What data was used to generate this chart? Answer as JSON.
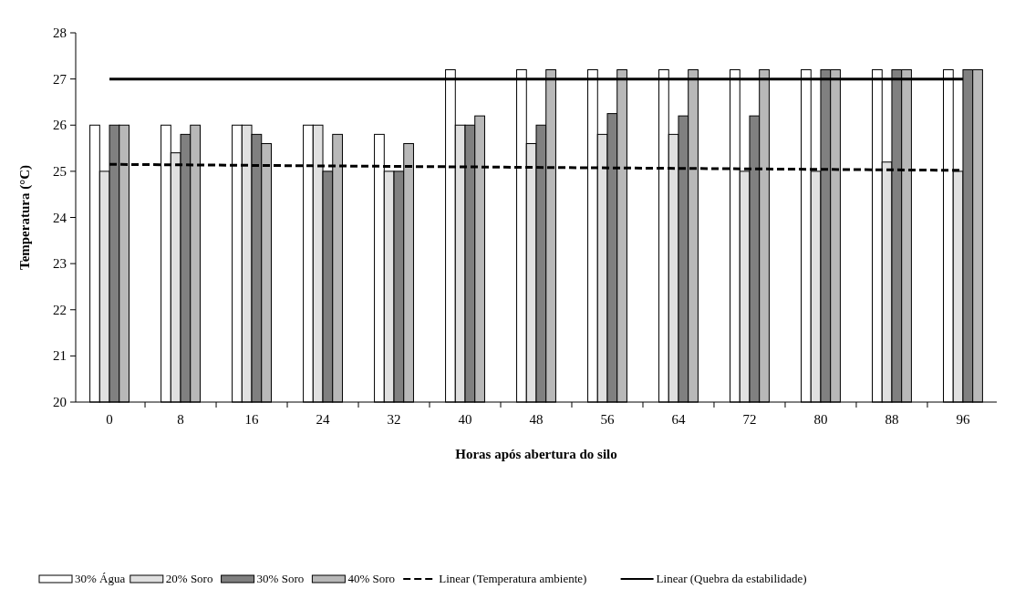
{
  "chart_data": {
    "type": "bar",
    "xlabel": "Horas após abertura do silo",
    "ylabel": "Temperatura (°C)",
    "categories": [
      "0",
      "8",
      "16",
      "24",
      "32",
      "40",
      "48",
      "56",
      "64",
      "72",
      "80",
      "88",
      "96"
    ],
    "ylim": [
      20,
      28
    ],
    "yticks": [
      20,
      21,
      22,
      23,
      24,
      25,
      26,
      27,
      28
    ],
    "grid": false,
    "legend": "bottom",
    "series": [
      {
        "name": "30% Água",
        "color": "#ffffff",
        "values": [
          26,
          26,
          26,
          26,
          25.8,
          27.2,
          27.2,
          27.2,
          27.2,
          27.2,
          27.2,
          27.2,
          27.2
        ]
      },
      {
        "name": "20% Soro",
        "color": "#e0e0e0",
        "values": [
          25,
          25.4,
          26,
          26,
          25,
          26,
          25.6,
          25.8,
          25.8,
          25,
          25,
          25.2,
          25
        ]
      },
      {
        "name": "30% Soro",
        "color": "#808080",
        "values": [
          26,
          25.8,
          25.8,
          25,
          25,
          26,
          26,
          26.25,
          26.2,
          26.2,
          27.2,
          27.2,
          27.2
        ]
      },
      {
        "name": "40% Soro",
        "color": "#b8b8b8",
        "values": [
          26,
          26,
          25.6,
          25.8,
          25.6,
          26.2,
          27.2,
          27.2,
          27.2,
          27.2,
          27.2,
          27.2,
          27.2
        ]
      },
      {
        "name": "Linear (Temperatura ambiente)",
        "type": "line",
        "line_style": "dashed",
        "color": "#000000",
        "x": [
          "0",
          "96"
        ],
        "values": [
          25.15,
          25.02
        ]
      },
      {
        "name": "Linear (Quebra da estabilidade)",
        "type": "line",
        "line_style": "solid",
        "color": "#000000",
        "x": [
          "0",
          "96"
        ],
        "values": [
          27,
          27
        ]
      }
    ]
  }
}
